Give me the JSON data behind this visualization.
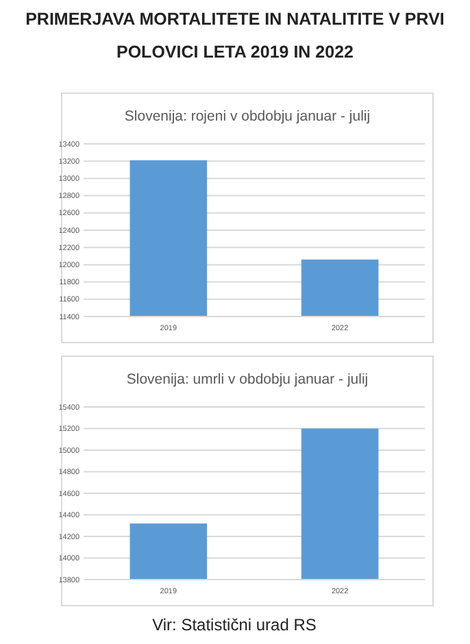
{
  "chart_data": [
    {
      "type": "bar",
      "title": "Slovenija: rojeni v obdobju januar - julij",
      "annotations": [
        "PRIMERJAVA MORTALITETE IN NATALITITE V PRVI POLOVICI LETA 2019 IN 2022"
      ],
      "categories": [
        "2019",
        "2022"
      ],
      "values": [
        13210,
        12060
      ],
      "color": "#5b9bd5",
      "ylim": [
        11400,
        13400
      ],
      "yticks": [
        11400,
        11600,
        11800,
        12000,
        12200,
        12400,
        12600,
        12800,
        13000,
        13200,
        13400
      ],
      "grid": "y"
    },
    {
      "type": "bar",
      "title": "Slovenija: umrli v obdobju januar - julij",
      "annotations": [
        "Vir: Statistični urad RS"
      ],
      "categories": [
        "2019",
        "2022"
      ],
      "values": [
        14320,
        15200
      ],
      "color": "#5b9bd5",
      "ylim": [
        13800,
        15400
      ],
      "yticks": [
        13800,
        14000,
        14200,
        14400,
        14600,
        14800,
        15000,
        15200,
        15400
      ],
      "grid": "y"
    }
  ]
}
